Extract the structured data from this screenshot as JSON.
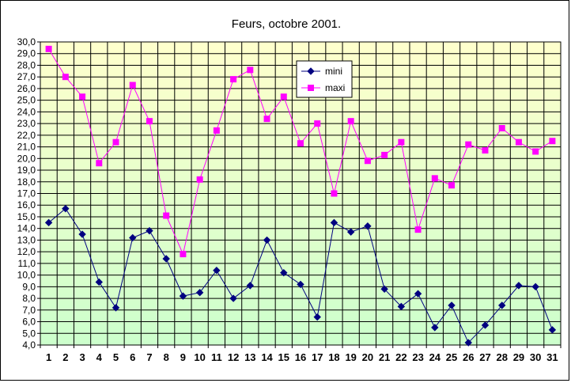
{
  "chart_data": {
    "type": "line",
    "title": "Feurs, octobre 2001.",
    "xlabel": "",
    "ylabel": "",
    "categories": [
      "1",
      "2",
      "3",
      "4",
      "5",
      "6",
      "7",
      "8",
      "9",
      "10",
      "11",
      "12",
      "13",
      "14",
      "15",
      "16",
      "17",
      "18",
      "19",
      "20",
      "21",
      "22",
      "23",
      "24",
      "25",
      "26",
      "27",
      "28",
      "29",
      "30",
      "31"
    ],
    "ylim": [
      4.0,
      30.0
    ],
    "ytick_step": 1.0,
    "ytick_labels": [
      "4,0",
      "5,0",
      "6,0",
      "7,0",
      "8,0",
      "9,0",
      "10,0",
      "11,0",
      "12,0",
      "13,0",
      "14,0",
      "15,0",
      "16,0",
      "17,0",
      "18,0",
      "19,0",
      "20,0",
      "21,0",
      "22,0",
      "23,0",
      "24,0",
      "25,0",
      "26,0",
      "27,0",
      "28,0",
      "29,0",
      "30,0"
    ],
    "grid": true,
    "legend_position": "top-center",
    "background_gradient": [
      "#ffffcc",
      "#ccffcc"
    ],
    "series": [
      {
        "name": "mini",
        "color": "#000080",
        "marker": "diamond",
        "values": [
          14.5,
          15.7,
          13.5,
          9.4,
          7.2,
          13.2,
          13.8,
          11.4,
          8.2,
          8.5,
          10.4,
          8.0,
          9.1,
          13.0,
          10.2,
          9.2,
          6.4,
          14.5,
          13.7,
          14.2,
          8.8,
          7.3,
          8.4,
          5.5,
          7.4,
          4.2,
          5.7,
          7.4,
          9.1,
          9.0,
          5.3
        ]
      },
      {
        "name": "maxi",
        "color": "#ff00ff",
        "marker": "square",
        "values": [
          29.4,
          27.0,
          25.3,
          19.6,
          21.4,
          26.3,
          23.2,
          15.1,
          11.8,
          18.2,
          22.4,
          26.8,
          27.6,
          23.4,
          25.3,
          21.3,
          23.0,
          17.0,
          23.2,
          19.8,
          20.3,
          21.4,
          13.9,
          18.3,
          17.7,
          21.2,
          20.7,
          22.6,
          21.4,
          20.6,
          21.5
        ]
      }
    ]
  }
}
